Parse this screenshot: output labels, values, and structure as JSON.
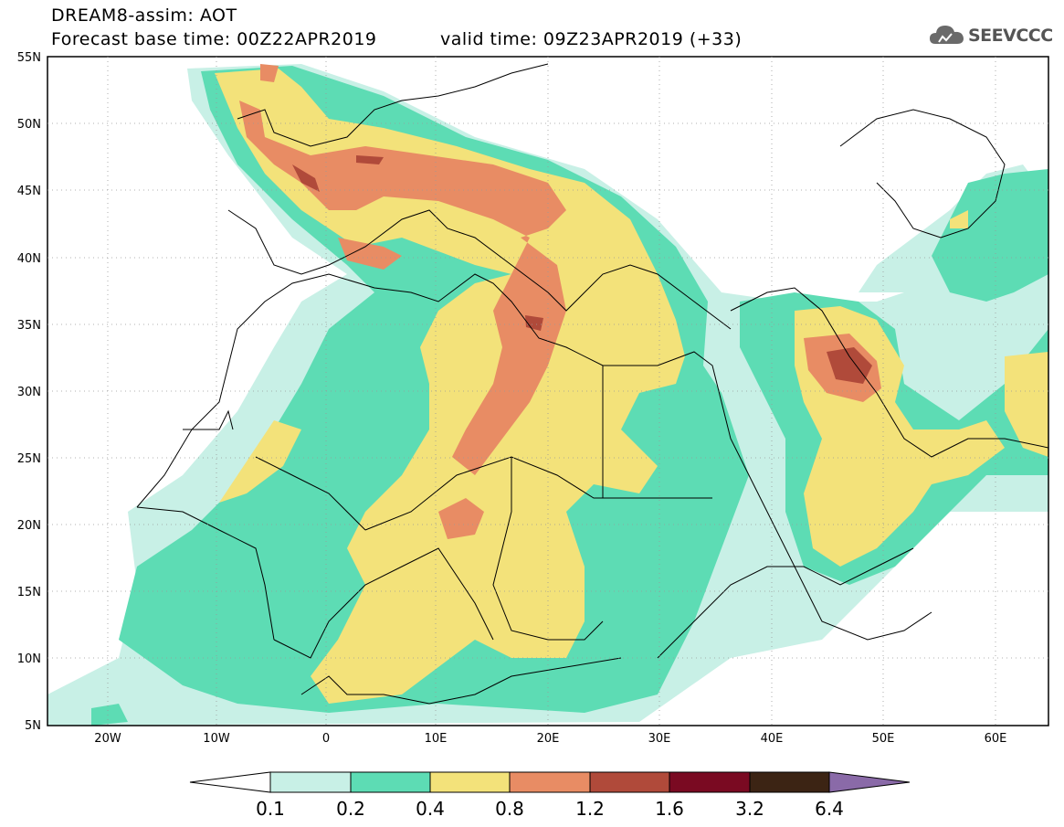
{
  "header": {
    "title": "DREAM8-assim: AOT",
    "base_time": "Forecast base time: 00Z22APR2019",
    "valid_time": "valid time: 09Z23APR2019 (+33)"
  },
  "logo": {
    "text": "SEEVCCC",
    "icon": "cloud-icon"
  },
  "map": {
    "lat_labels": [
      "55N",
      "50N",
      "45N",
      "40N",
      "35N",
      "30N",
      "25N",
      "20N",
      "15N",
      "10N",
      "5N"
    ],
    "lon_labels": [
      "20W",
      "10W",
      "0",
      "10E",
      "20E",
      "30E",
      "40E",
      "50E",
      "60E"
    ],
    "colors": {
      "c01": "#c8f0e6",
      "c02": "#5ddcb4",
      "c04": "#f3e27a",
      "c08": "#e88c64",
      "c12": "#b04a3a",
      "c16": "#7a0a22",
      "c32": "#3c2414",
      "c64": "#8a6aa8",
      "coast": "#000000"
    }
  },
  "colorbar": {
    "labels": [
      "0.1",
      "0.2",
      "0.4",
      "0.8",
      "1.2",
      "1.6",
      "3.2",
      "6.4"
    ],
    "colors": [
      "#ffffff",
      "#c8f0e6",
      "#5ddcb4",
      "#f3e27a",
      "#e88c64",
      "#b04a3a",
      "#7a0a22",
      "#3c2414",
      "#8a6aa8"
    ]
  }
}
